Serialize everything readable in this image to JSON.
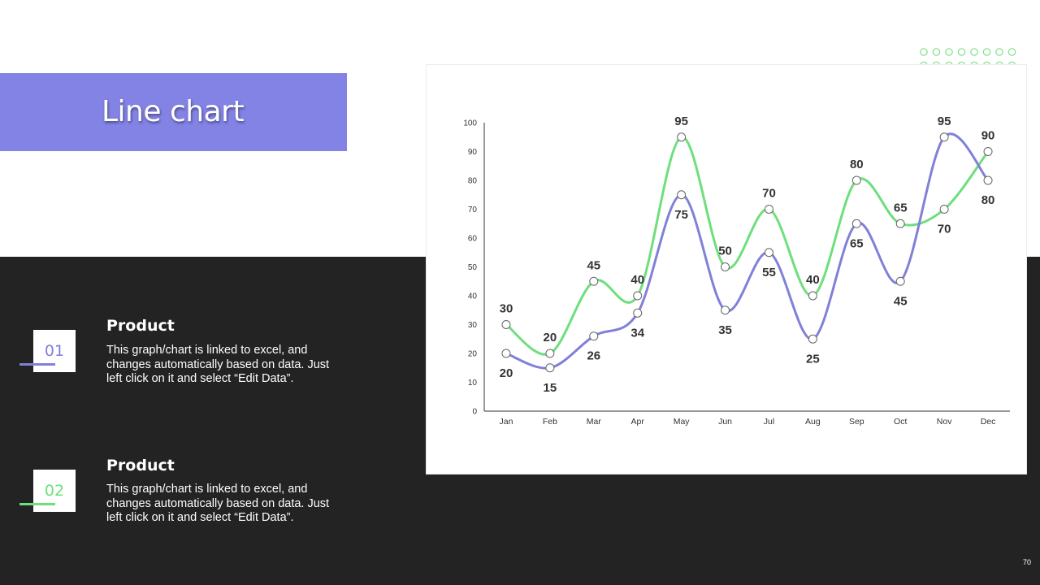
{
  "slide": {
    "title": "Line chart",
    "page_number": "70",
    "items": [
      {
        "number": "01",
        "title": "Product",
        "description": "This graph/chart is linked to excel, and changes automatically based on data. Just left click on it and select “Edit Data”.",
        "color": "#8080d8"
      },
      {
        "number": "02",
        "title": "Product",
        "description": "This graph/chart is linked to excel, and changes automatically based on data. Just left click on it and select “Edit Data”.",
        "color": "#6ddf7c"
      }
    ]
  },
  "colors": {
    "accent_purple": "#8383e6",
    "series_purple": "#8080d8",
    "series_green": "#6ddf7c",
    "dark_background": "#232323",
    "dot_pattern": "#7ee08a"
  },
  "chart_data": {
    "type": "line",
    "categories": [
      "Jan",
      "Feb",
      "Mar",
      "Apr",
      "May",
      "Jun",
      "Jul",
      "Aug",
      "Sep",
      "Oct",
      "Nov",
      "Dec"
    ],
    "series": [
      {
        "values": [
          20,
          15,
          26,
          34,
          75,
          35,
          55,
          25,
          65,
          45,
          95,
          80
        ],
        "color": "#8080d8"
      },
      {
        "values": [
          30,
          20,
          45,
          40,
          95,
          50,
          70,
          40,
          80,
          65,
          70,
          90
        ],
        "color": "#6ddf7c"
      }
    ],
    "y_ticks": [
      0,
      10,
      20,
      30,
      40,
      50,
      60,
      70,
      80,
      90,
      100
    ],
    "ylim": [
      0,
      100
    ],
    "grid": false,
    "smooth": true,
    "data_labels": true
  }
}
